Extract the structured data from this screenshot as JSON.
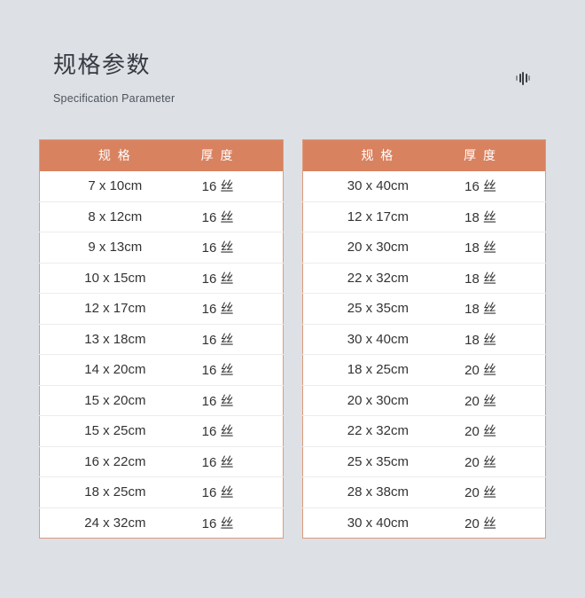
{
  "page": {
    "title": "规格参数",
    "subtitle": "Specification Parameter"
  },
  "icons": {
    "audio_wave": "audio-wave-icon"
  },
  "colors": {
    "page_bg": "#dde1e6",
    "header_bg": "#d88260",
    "table_border": "#de9a7c",
    "row_bg": "#ffffff",
    "row_divider": "#ececec",
    "header_text": "#ffffff",
    "cell_text": "#333333",
    "title_text": "#363b41",
    "subtitle_text": "#4e535a",
    "icon_dark": "#3a4046",
    "icon_light": "#8a9096"
  },
  "tables": [
    {
      "headers": [
        "规 格",
        "厚 度"
      ],
      "rows": [
        [
          "7 x 10cm",
          "16 丝"
        ],
        [
          "8 x 12cm",
          "16 丝"
        ],
        [
          "9 x 13cm",
          "16 丝"
        ],
        [
          "10 x 15cm",
          "16 丝"
        ],
        [
          "12 x 17cm",
          "16 丝"
        ],
        [
          "13 x 18cm",
          "16 丝"
        ],
        [
          "14 x 20cm",
          "16 丝"
        ],
        [
          "15 x 20cm",
          "16 丝"
        ],
        [
          "15 x 25cm",
          "16 丝"
        ],
        [
          "16 x 22cm",
          "16 丝"
        ],
        [
          "18 x 25cm",
          "16 丝"
        ],
        [
          "24 x 32cm",
          "16 丝"
        ]
      ]
    },
    {
      "headers": [
        "规 格",
        "厚 度"
      ],
      "rows": [
        [
          "30 x 40cm",
          "16 丝"
        ],
        [
          "12 x 17cm",
          "18 丝"
        ],
        [
          "20 x 30cm",
          "18 丝"
        ],
        [
          "22 x 32cm",
          "18 丝"
        ],
        [
          "25 x 35cm",
          "18 丝"
        ],
        [
          "30 x 40cm",
          "18 丝"
        ],
        [
          "18 x 25cm",
          "20 丝"
        ],
        [
          "20 x 30cm",
          "20 丝"
        ],
        [
          "22 x 32cm",
          "20 丝"
        ],
        [
          "25 x 35cm",
          "20 丝"
        ],
        [
          "28 x 38cm",
          "20 丝"
        ],
        [
          "30 x 40cm",
          "20 丝"
        ]
      ]
    }
  ]
}
